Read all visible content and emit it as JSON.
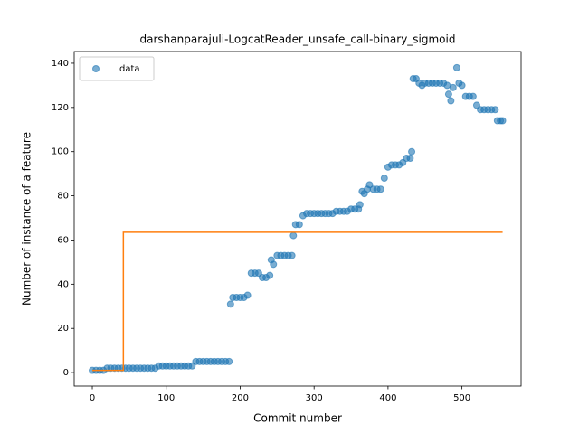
{
  "chart_data": {
    "type": "scatter",
    "title": "darshanparajuli-LogcatReader_unsafe_call-binary_sigmoid",
    "xlabel": "Commit number",
    "ylabel": "Number of instance of a feature",
    "xlim": [
      -24.5,
      580
    ],
    "ylim": [
      -6.1,
      145.3
    ],
    "xticks": [
      0,
      100,
      200,
      300,
      400,
      500
    ],
    "yticks": [
      0,
      20,
      40,
      60,
      80,
      100,
      120,
      140
    ],
    "legend": "upper left",
    "series": [
      {
        "name": "data",
        "type": "scatter",
        "color": "#1f77b4",
        "x": [
          0,
          5,
          10,
          15,
          20,
          25,
          30,
          35,
          40,
          45,
          50,
          55,
          60,
          65,
          70,
          75,
          80,
          85,
          90,
          95,
          100,
          105,
          110,
          115,
          120,
          125,
          130,
          135,
          140,
          145,
          150,
          155,
          160,
          165,
          170,
          175,
          180,
          185,
          187,
          190,
          195,
          200,
          205,
          210,
          215,
          220,
          225,
          230,
          235,
          240,
          242,
          245,
          250,
          255,
          260,
          265,
          270,
          272,
          275,
          280,
          285,
          290,
          295,
          300,
          305,
          310,
          315,
          320,
          325,
          330,
          335,
          340,
          345,
          350,
          355,
          360,
          362,
          365,
          368,
          372,
          375,
          380,
          385,
          390,
          395,
          400,
          405,
          410,
          415,
          420,
          425,
          430,
          432,
          434,
          438,
          442,
          446,
          450,
          455,
          460,
          465,
          470,
          475,
          480,
          482,
          485,
          488,
          493,
          496,
          500,
          505,
          510,
          515,
          520,
          525,
          530,
          535,
          540,
          545,
          548,
          552,
          555
        ],
        "values": [
          1,
          1,
          1,
          1,
          2,
          2,
          2,
          2,
          2,
          2,
          2,
          2,
          2,
          2,
          2,
          2,
          2,
          2,
          3,
          3,
          3,
          3,
          3,
          3,
          3,
          3,
          3,
          3,
          5,
          5,
          5,
          5,
          5,
          5,
          5,
          5,
          5,
          5,
          31,
          34,
          34,
          34,
          34,
          35,
          45,
          45,
          45,
          43,
          43,
          44,
          51,
          49,
          53,
          53,
          53,
          53,
          53,
          62,
          67,
          67,
          71,
          72,
          72,
          72,
          72,
          72,
          72,
          72,
          72,
          73,
          73,
          73,
          73,
          74,
          74,
          74,
          76,
          82,
          81,
          83,
          85,
          83,
          83,
          83,
          88,
          93,
          94,
          94,
          94,
          95,
          97,
          97,
          100,
          133,
          133,
          131,
          130,
          131,
          131,
          131,
          131,
          131,
          131,
          130,
          126,
          123,
          129,
          138,
          131,
          130,
          125,
          125,
          125,
          121,
          119,
          119,
          119,
          119,
          119,
          114,
          114,
          114
        ]
      },
      {
        "type": "line",
        "color": "#ff7f0e",
        "x": [
          0,
          42,
          42,
          555
        ],
        "values": [
          1,
          1,
          63.5,
          63.5
        ]
      }
    ]
  }
}
